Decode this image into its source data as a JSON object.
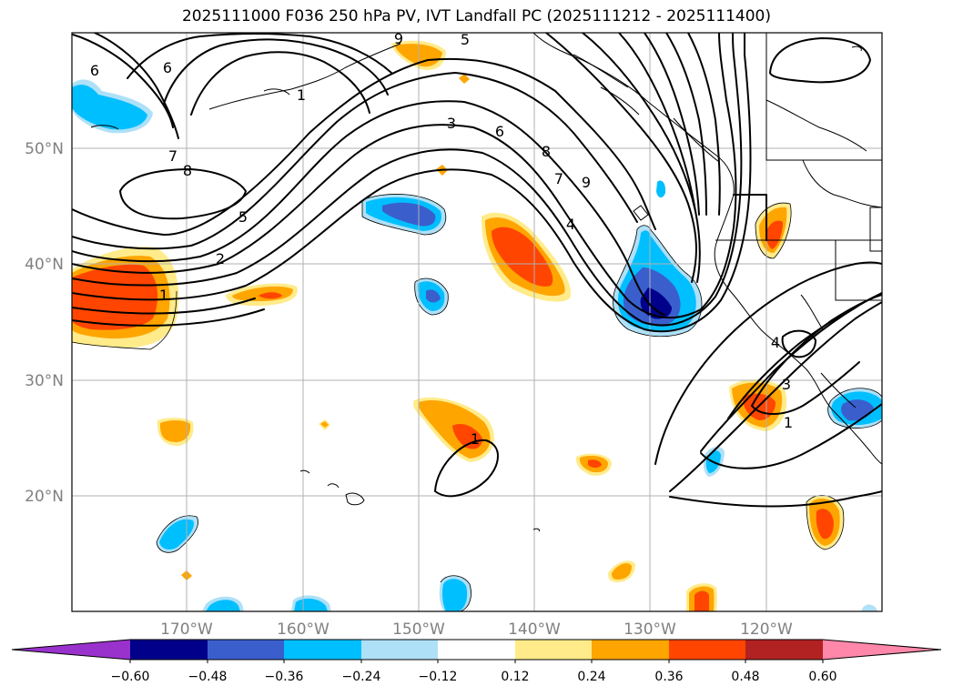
{
  "title": "2025111000 F036 250 hPa PV, IVT Landfall PC (2025111212 - 2025111400)",
  "lat_labels": [
    "50°N",
    "40°N",
    "30°N",
    "20°N"
  ],
  "lon_labels": [
    "170°W",
    "160°W",
    "150°W",
    "140°W",
    "130°W",
    "120°W"
  ],
  "contour_labels": [
    "6",
    "9",
    "5",
    "6",
    "1",
    "3",
    "6",
    "8",
    "7",
    "9",
    "4",
    "7",
    "8",
    "5",
    "2",
    "1",
    "1",
    "4",
    "3",
    "1"
  ],
  "colorbar": {
    "ticks": [
      "−0.60",
      "−0.48",
      "−0.36",
      "−0.24",
      "−0.12",
      "0.12",
      "0.24",
      "0.36",
      "0.48",
      "0.60"
    ],
    "colors": [
      "#9932cc",
      "#00008b",
      "#3a5fcd",
      "#00bfff",
      "#aee0f7",
      "#ffffff",
      "#ffeb8a",
      "#ffa500",
      "#ff4500",
      "#b22222",
      "#ff88aa"
    ]
  }
}
